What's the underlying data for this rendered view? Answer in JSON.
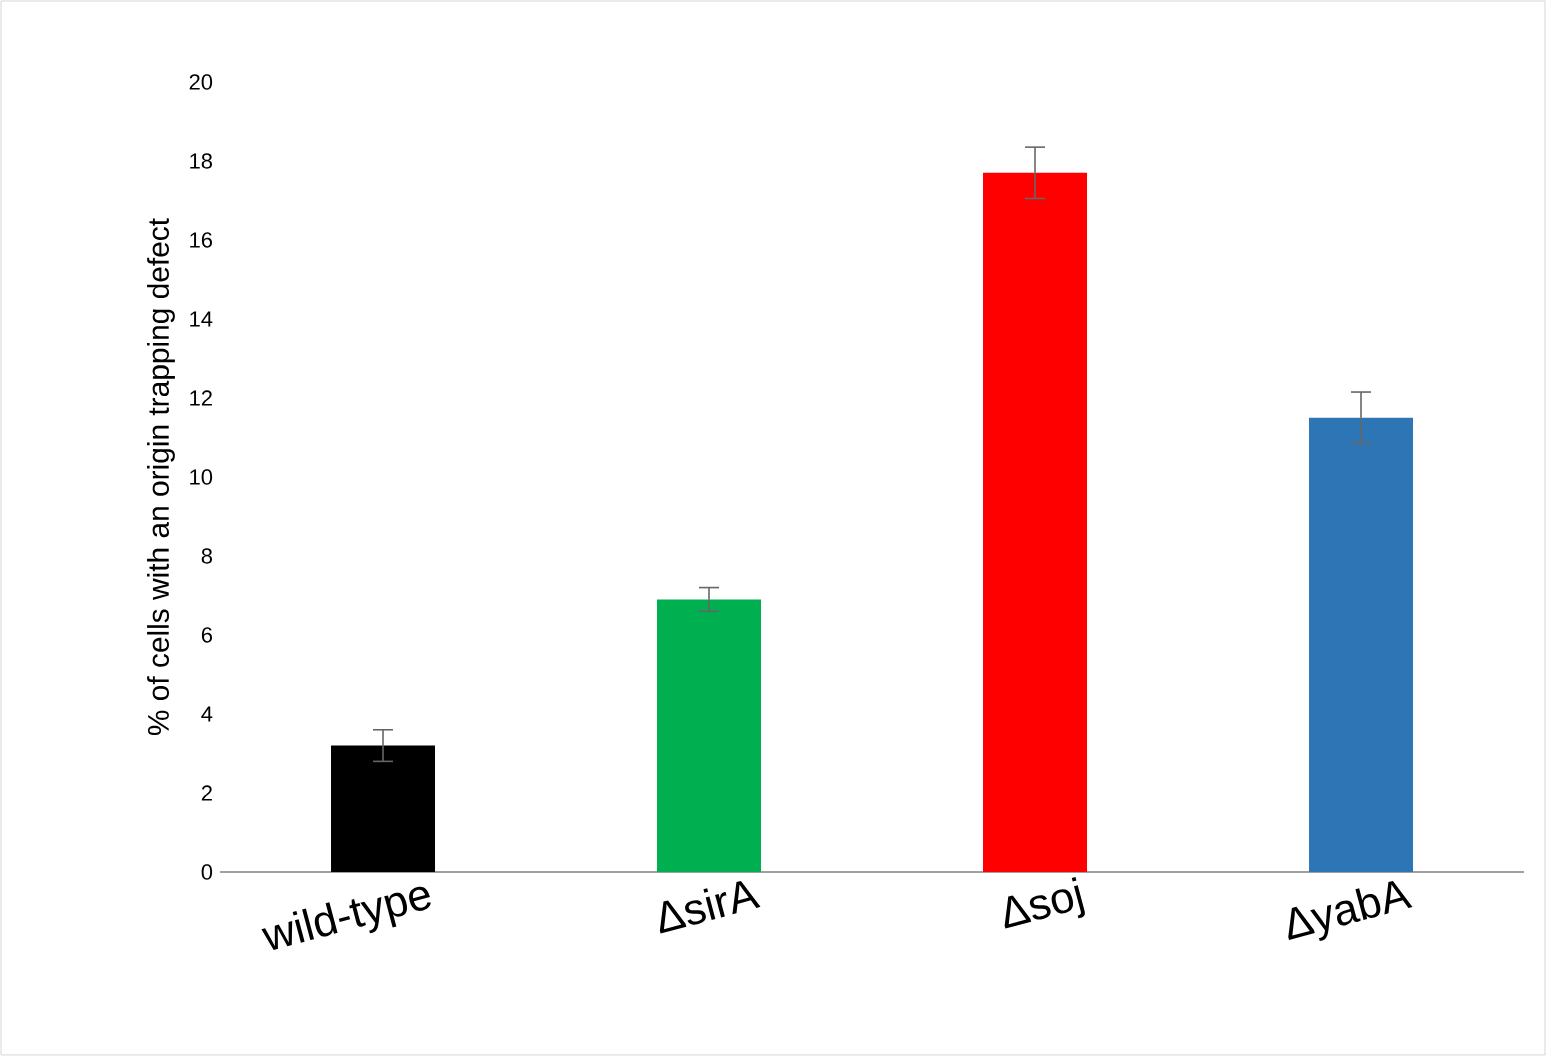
{
  "chart_data": {
    "type": "bar",
    "ylabel": "% of cells with an origin trapping defect",
    "categories": [
      "wild-type",
      "ΔsirA",
      "Δsoj",
      "ΔyabA"
    ],
    "values": [
      3.2,
      6.9,
      17.7,
      11.5
    ],
    "errors": [
      0.4,
      0.3,
      0.65,
      0.65
    ],
    "colors": [
      "#000000",
      "#00b050",
      "#ff0000",
      "#2e75b6"
    ],
    "ylim": [
      0,
      20
    ],
    "yticks": [
      0,
      2,
      4,
      6,
      8,
      10,
      12,
      14,
      16,
      18,
      20
    ],
    "grid": false
  }
}
